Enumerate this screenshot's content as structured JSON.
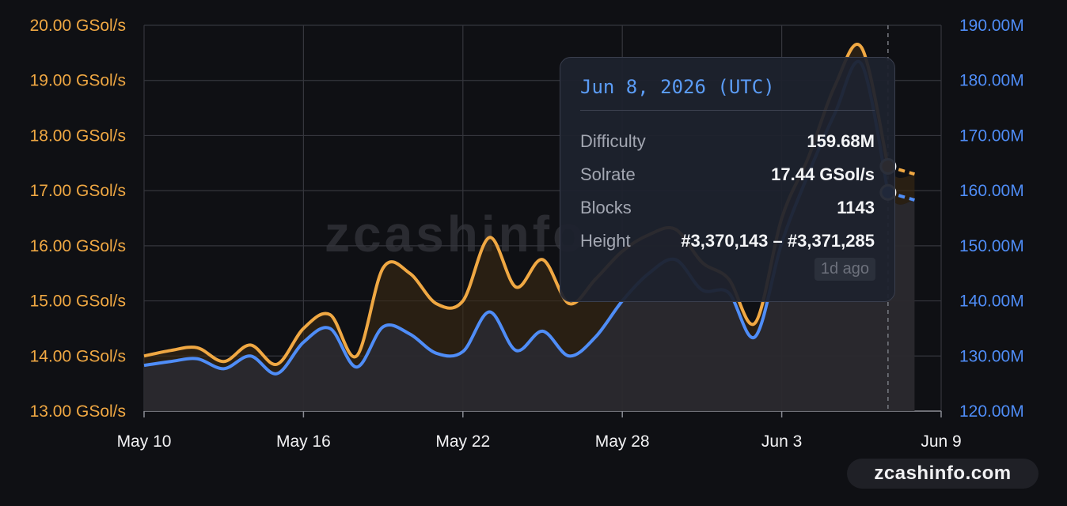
{
  "chart_data": {
    "type": "line",
    "watermark": "zcashinfo",
    "x_ticks": [
      "May 10",
      "May 16",
      "May 22",
      "May 28",
      "Jun 3",
      "Jun 9"
    ],
    "y_left": {
      "ticks": [
        "13.00 GSol/s",
        "14.00 GSol/s",
        "15.00 GSol/s",
        "16.00 GSol/s",
        "17.00 GSol/s",
        "18.00 GSol/s",
        "19.00 GSol/s",
        "20.00 GSol/s"
      ],
      "range": [
        13,
        20
      ],
      "color": "#f0a843"
    },
    "y_right": {
      "ticks": [
        "120.00M",
        "130.00M",
        "140.00M",
        "150.00M",
        "160.00M",
        "170.00M",
        "180.00M",
        "190.00M"
      ],
      "range": [
        120,
        190
      ],
      "color": "#4f8df7"
    },
    "grid": true,
    "series": [
      {
        "name": "Solrate",
        "unit": "GSol/s",
        "axis": "left",
        "color": "#f0a843",
        "points": [
          [
            0,
            14.0
          ],
          [
            1,
            14.1
          ],
          [
            2,
            14.15
          ],
          [
            3,
            13.9
          ],
          [
            4,
            14.2
          ],
          [
            5,
            13.85
          ],
          [
            6,
            14.5
          ],
          [
            7,
            14.75
          ],
          [
            8,
            14.0
          ],
          [
            9,
            15.6
          ],
          [
            10,
            15.5
          ],
          [
            11,
            14.95
          ],
          [
            12,
            15.0
          ],
          [
            13,
            16.15
          ],
          [
            14,
            15.25
          ],
          [
            15,
            15.75
          ],
          [
            16,
            14.95
          ],
          [
            17,
            15.4
          ],
          [
            18,
            15.9
          ],
          [
            19,
            16.2
          ],
          [
            20,
            16.3
          ],
          [
            21,
            15.7
          ],
          [
            22,
            15.4
          ],
          [
            23,
            14.6
          ],
          [
            24,
            16.5
          ],
          [
            25,
            17.6
          ],
          [
            26,
            18.9
          ],
          [
            27,
            19.6
          ],
          [
            28,
            17.44
          ],
          [
            29,
            17.3
          ]
        ]
      },
      {
        "name": "Difficulty",
        "unit": "M",
        "axis": "right",
        "color": "#4f8df7",
        "points": [
          [
            0,
            128.3
          ],
          [
            1,
            129.0
          ],
          [
            2,
            129.5
          ],
          [
            3,
            127.7
          ],
          [
            4,
            130.0
          ],
          [
            5,
            126.8
          ],
          [
            6,
            132.5
          ],
          [
            7,
            135.0
          ],
          [
            8,
            128.0
          ],
          [
            9,
            135.3
          ],
          [
            10,
            134.0
          ],
          [
            11,
            130.5
          ],
          [
            12,
            130.8
          ],
          [
            13,
            138.0
          ],
          [
            14,
            131.0
          ],
          [
            15,
            134.5
          ],
          [
            16,
            130.0
          ],
          [
            17,
            133.5
          ],
          [
            18,
            140.0
          ],
          [
            19,
            145.0
          ],
          [
            20,
            147.5
          ],
          [
            21,
            142.0
          ],
          [
            22,
            141.5
          ],
          [
            23,
            133.5
          ],
          [
            24,
            150.5
          ],
          [
            25,
            163.0
          ],
          [
            26,
            174.0
          ],
          [
            27,
            183.0
          ],
          [
            28,
            159.68
          ],
          [
            29,
            158.3
          ]
        ]
      }
    ],
    "crosshair_index": 28
  },
  "tooltip": {
    "date": "Jun 8, 2026 (UTC)",
    "rows": [
      {
        "label": "Difficulty",
        "value": "159.68M"
      },
      {
        "label": "Solrate",
        "value": "17.44 GSol/s"
      },
      {
        "label": "Blocks",
        "value": "1143"
      },
      {
        "label": "Height",
        "value": "#3,370,143 – #3,371,285"
      }
    ],
    "ago": "1d ago"
  },
  "brand": "zcashinfo.com"
}
